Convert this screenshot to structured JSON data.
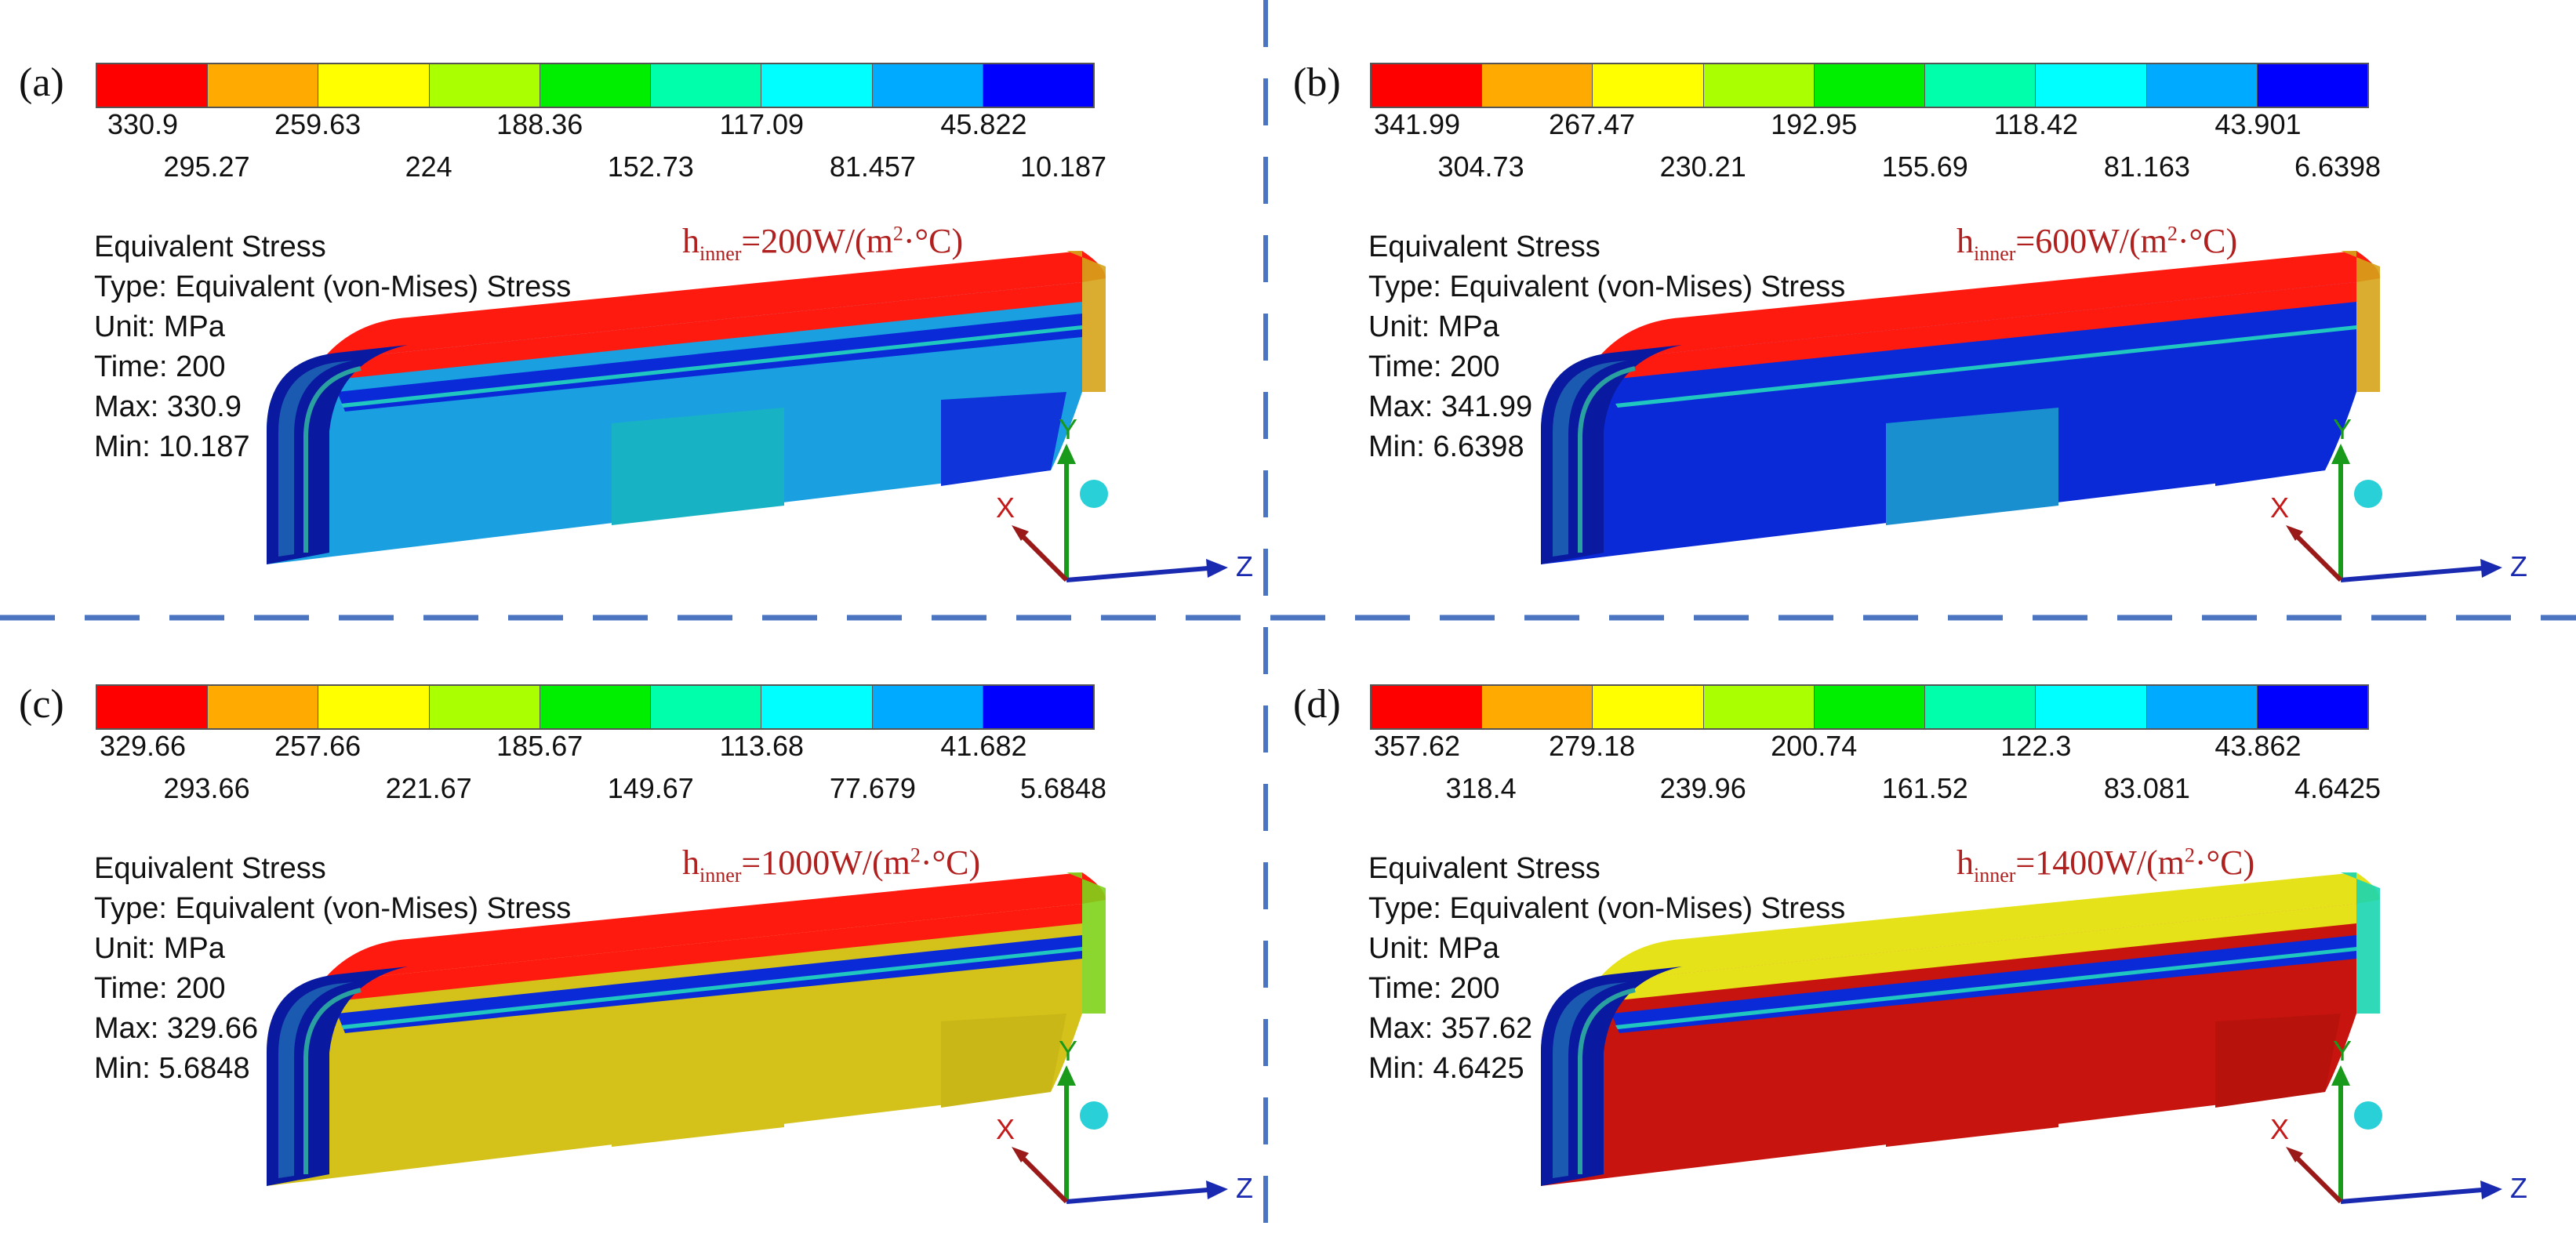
{
  "colors": {
    "bands": [
      "#ff0000",
      "#ffaa00",
      "#ffff00",
      "#aaff00",
      "#00ee00",
      "#00ffaa",
      "#00ffff",
      "#00aaff",
      "#0000ff"
    ],
    "divider": "#4b74c1",
    "label_red": "#b0201f"
  },
  "panels": [
    {
      "letter": "(a)",
      "ticks_top": [
        "330.9",
        "259.63",
        "188.36",
        "117.09",
        "45.822"
      ],
      "ticks_bottom": [
        "295.27",
        "224",
        "152.73",
        "81.457",
        "10.187"
      ],
      "info": {
        "title": "Equivalent Stress",
        "type": "Type: Equivalent (von-Mises) Stress",
        "unit": "Unit: MPa",
        "time": "Time: 200",
        "max": "Max: 330.9",
        "min": "Min: 10.187"
      },
      "h_label": {
        "h": "h",
        "sub": "inner",
        "value": "=200W/(m",
        "sup": "2",
        "unit": "·°C)"
      },
      "model_colors": {
        "top": "#ff1a10",
        "stripe": "#0a2ad8",
        "side_a": "#1aa0e0",
        "side_b": "#17b3c4",
        "side_c": "#0f34d9",
        "end": "#0a1aa0",
        "cap": "#d6a31a"
      }
    },
    {
      "letter": "(b)",
      "ticks_top": [
        "341.99",
        "267.47",
        "192.95",
        "118.42",
        "43.901"
      ],
      "ticks_bottom": [
        "304.73",
        "230.21",
        "155.69",
        "81.163",
        "6.6398"
      ],
      "info": {
        "title": "Equivalent Stress",
        "type": "Type: Equivalent (von-Mises) Stress",
        "unit": "Unit: MPa",
        "time": "Time: 200",
        "max": "Max: 341.99",
        "min": "Min: 6.6398"
      },
      "h_label": {
        "h": "h",
        "sub": "inner",
        "value": "=600W/(m",
        "sup": "2",
        "unit": "·°C)"
      },
      "model_colors": {
        "top": "#ff1a10",
        "stripe": "#0a2ad8",
        "side_a": "#0a2ad8",
        "side_b": "#1a8fd0",
        "side_c": "#0a2ad8",
        "end": "#0a1aa0",
        "cap": "#d6a31a"
      }
    },
    {
      "letter": "(c)",
      "ticks_top": [
        "329.66",
        "257.66",
        "185.67",
        "113.68",
        "41.682"
      ],
      "ticks_bottom": [
        "293.66",
        "221.67",
        "149.67",
        "77.679",
        "5.6848"
      ],
      "info": {
        "title": "Equivalent Stress",
        "type": "Type: Equivalent (von-Mises) Stress",
        "unit": "Unit: MPa",
        "time": "Time: 200",
        "max": "Max: 329.66",
        "min": "Min: 5.6848"
      },
      "h_label": {
        "h": "h",
        "sub": "inner",
        "value": "=1000W/(m",
        "sup": "2",
        "unit": "·°C)"
      },
      "model_colors": {
        "top": "#ff1a10",
        "stripe": "#0a2ad8",
        "side_a": "#d4c21a",
        "side_b": "#d4c21a",
        "side_c": "#c9b617",
        "end": "#0a1aa0",
        "cap": "#7fd21a"
      }
    },
    {
      "letter": "(d)",
      "ticks_top": [
        "357.62",
        "279.18",
        "200.74",
        "122.3",
        "43.862"
      ],
      "ticks_bottom": [
        "318.4",
        "239.96",
        "161.52",
        "83.081",
        "4.6425"
      ],
      "info": {
        "title": "Equivalent Stress",
        "type": "Type: Equivalent (von-Mises) Stress",
        "unit": "Unit: MPa",
        "time": "Time: 200",
        "max": "Max: 357.62",
        "min": "Min: 4.6425"
      },
      "h_label": {
        "h": "h",
        "sub": "inner",
        "value": "=1400W/(m",
        "sup": "2",
        "unit": "·°C)"
      },
      "model_colors": {
        "top": "#e6e21a",
        "stripe": "#0a2ad8",
        "side_a": "#c8140e",
        "side_b": "#c8140e",
        "side_c": "#b8120c",
        "end": "#0a1aa0",
        "cap": "#1ad6b0"
      }
    }
  ],
  "axes": {
    "x": "X",
    "y": "Y",
    "z": "Z"
  }
}
